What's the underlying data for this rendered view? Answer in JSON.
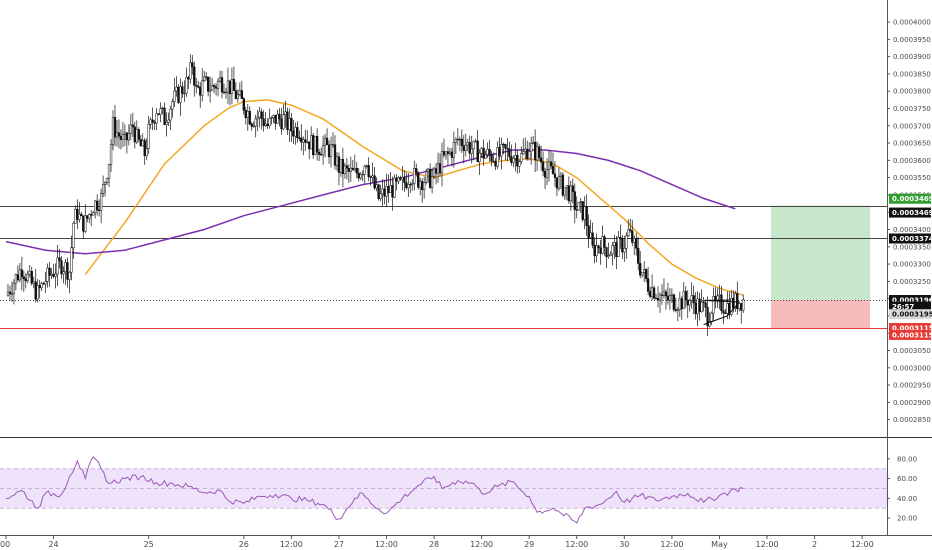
{
  "chart_data": [
    {
      "type": "candlestick",
      "panel": "price",
      "y_ticks": [
        "0.0004000",
        "0.0003950",
        "0.0003900",
        "0.0003850",
        "0.0003800",
        "0.0003750",
        "0.0003700",
        "0.0003650",
        "0.0003600",
        "0.0003550",
        "0.0003500",
        "0.0003450",
        "0.0003400",
        "0.0003350",
        "0.0003300",
        "0.0003250",
        "0.0003200",
        "0.0003150",
        "0.0003100",
        "0.0003050",
        "0.0003000",
        "0.0002950",
        "0.0002900",
        "0.0002850"
      ],
      "ylim": [
        0.000282,
        0.0004035
      ],
      "x_ticks": [
        {
          "label": "00",
          "t": 0.0
        },
        {
          "label": "24",
          "t": 12.0
        },
        {
          "label": "25",
          "t": 36.0
        },
        {
          "label": "26",
          "t": 60.0
        },
        {
          "label": "12:00",
          "t": 72.0
        },
        {
          "label": "27",
          "t": 84.0
        },
        {
          "label": "12:00",
          "t": 96.0
        },
        {
          "label": "28",
          "t": 108.0
        },
        {
          "label": "12:00",
          "t": 120.0
        },
        {
          "label": "29",
          "t": 132.0
        },
        {
          "label": "12:00",
          "t": 144.0
        },
        {
          "label": "30",
          "t": 156.0
        },
        {
          "label": "12:00",
          "t": 168.0
        },
        {
          "label": "May",
          "t": 180.0
        },
        {
          "label": "12:00",
          "t": 192.0
        },
        {
          "label": "2",
          "t": 204.0
        },
        {
          "label": "12:00",
          "t": 216.0
        }
      ],
      "price_path": [
        [
          0,
          0.000321
        ],
        [
          2,
          0.000325
        ],
        [
          4,
          0.000329
        ],
        [
          6,
          0.000325
        ],
        [
          8,
          0.0003215
        ],
        [
          10,
          0.0003255
        ],
        [
          12,
          0.000328
        ],
        [
          14,
          0.00033
        ],
        [
          16,
          0.000328
        ],
        [
          17,
          0.000342
        ],
        [
          18,
          0.000345
        ],
        [
          19,
          0.000342
        ],
        [
          20,
          0.000342
        ],
        [
          22,
          0.000347
        ],
        [
          24,
          0.000349
        ],
        [
          26,
          0.00036
        ],
        [
          27,
          0.00037
        ],
        [
          28,
          0.000368
        ],
        [
          30,
          0.000365
        ],
        [
          32,
          0.00037
        ],
        [
          33,
          0.000366
        ],
        [
          35,
          0.000362
        ],
        [
          36,
          0.000368
        ],
        [
          38,
          0.000375
        ],
        [
          40,
          0.000372
        ],
        [
          42,
          0.000377
        ],
        [
          44,
          0.00038
        ],
        [
          46,
          0.000383
        ],
        [
          47,
          0.000388
        ],
        [
          48,
          0.00038
        ],
        [
          50,
          0.000382
        ],
        [
          52,
          0.000381
        ],
        [
          54,
          0.000383
        ],
        [
          56,
          0.000382
        ],
        [
          58,
          0.000379
        ],
        [
          60,
          0.000376
        ],
        [
          62,
          0.000372
        ],
        [
          64,
          0.000373
        ],
        [
          66,
          0.00037
        ],
        [
          68,
          0.000372
        ],
        [
          70,
          0.000372
        ],
        [
          72,
          0.000369
        ],
        [
          74,
          0.000369
        ],
        [
          76,
          0.000366
        ],
        [
          78,
          0.000364
        ],
        [
          80,
          0.000364
        ],
        [
          82,
          0.000363
        ],
        [
          84,
          0.000358
        ],
        [
          86,
          0.0003565
        ],
        [
          88,
          0.000356
        ],
        [
          90,
          0.000358
        ],
        [
          91,
          0.0003605
        ],
        [
          92,
          0.000355
        ],
        [
          94,
          0.000349
        ],
        [
          96,
          0.000351
        ],
        [
          98,
          0.000352
        ],
        [
          100,
          0.000353
        ],
        [
          102,
          0.000356
        ],
        [
          104,
          0.0003545
        ],
        [
          106,
          0.0003545
        ],
        [
          108,
          0.000355
        ],
        [
          110,
          0.00036
        ],
        [
          112,
          0.000362
        ],
        [
          114,
          0.000366
        ],
        [
          116,
          0.000365
        ],
        [
          118,
          0.000363
        ],
        [
          120,
          0.000362
        ],
        [
          122,
          0.0003615
        ],
        [
          124,
          0.000361
        ],
        [
          126,
          0.0003625
        ],
        [
          128,
          0.0003615
        ],
        [
          130,
          0.000361
        ],
        [
          132,
          0.000364
        ],
        [
          134,
          0.000362
        ],
        [
          136,
          0.000358
        ],
        [
          138,
          0.000356
        ],
        [
          140,
          0.000353
        ],
        [
          142,
          0.000351
        ],
        [
          144,
          0.000346
        ],
        [
          146,
          0.000345
        ],
        [
          147,
          0.000339
        ],
        [
          148,
          0.000334
        ],
        [
          150,
          0.000336
        ],
        [
          152,
          0.000334
        ],
        [
          154,
          0.0003345
        ],
        [
          156,
          0.000336
        ],
        [
          157,
          0.000339
        ],
        [
          158,
          0.000337
        ],
        [
          159,
          0.000333
        ],
        [
          160,
          0.000329
        ],
        [
          162,
          0.000324
        ],
        [
          164,
          0.000322
        ],
        [
          166,
          0.00032
        ],
        [
          168,
          0.0003195
        ],
        [
          170,
          0.000319
        ],
        [
          172,
          0.00032
        ],
        [
          174,
          0.0003185
        ],
        [
          176,
          0.000317
        ],
        [
          177,
          0.000315
        ],
        [
          178,
          0.0003175
        ],
        [
          180,
          0.0003185
        ],
        [
          182,
          0.000318
        ],
        [
          184,
          0.000319
        ],
        [
          186,
          0.0003196
        ]
      ],
      "series": [
        {
          "name": "",
          "color": "#f5a623",
          "points": [
            [
              20,
              0.000327
            ],
            [
              30,
              0.000342
            ],
            [
              40,
              0.000359
            ],
            [
              50,
              0.00037
            ],
            [
              56,
              0.000375
            ],
            [
              60,
              0.000377
            ],
            [
              66,
              0.0003775
            ],
            [
              72,
              0.000376
            ],
            [
              80,
              0.000372
            ],
            [
              90,
              0.000364
            ],
            [
              100,
              0.000357
            ],
            [
              108,
              0.000355
            ],
            [
              114,
              0.000357
            ],
            [
              120,
              0.000359
            ],
            [
              126,
              0.00036
            ],
            [
              132,
              0.0003605
            ],
            [
              138,
              0.000359
            ],
            [
              144,
              0.000355
            ],
            [
              150,
              0.000349
            ],
            [
              156,
              0.000343
            ],
            [
              162,
              0.000336
            ],
            [
              168,
              0.00033
            ],
            [
              174,
              0.000326
            ],
            [
              180,
              0.000323
            ],
            [
              186,
              0.000321
            ]
          ]
        },
        {
          "name": "",
          "color": "#7b2fb0",
          "points": [
            [
              0,
              0.0003365
            ],
            [
              10,
              0.000334
            ],
            [
              20,
              0.000333
            ],
            [
              30,
              0.000334
            ],
            [
              40,
              0.000337
            ],
            [
              50,
              0.00034
            ],
            [
              60,
              0.000344
            ],
            [
              70,
              0.000347
            ],
            [
              80,
              0.00035
            ],
            [
              90,
              0.000353
            ],
            [
              100,
              0.000355
            ],
            [
              110,
              0.000358
            ],
            [
              120,
              0.000361
            ],
            [
              128,
              0.000363
            ],
            [
              136,
              0.000363
            ],
            [
              144,
              0.000362
            ],
            [
              152,
              0.00036
            ],
            [
              160,
              0.000357
            ],
            [
              168,
              0.000353
            ],
            [
              176,
              0.000349
            ],
            [
              184,
              0.000346
            ]
          ]
        }
      ],
      "horizontal_lines": [
        {
          "price": 0.0003469,
          "color": "#444444",
          "style": "solid"
        },
        {
          "price": 0.0003374,
          "color": "#444444",
          "style": "solid"
        },
        {
          "price": 0.0003196,
          "color": "#444444",
          "style": "dotted"
        },
        {
          "price": 0.0003115,
          "color": "#e53935",
          "style": "solid"
        }
      ],
      "position_box": {
        "t_start": 193,
        "t_end": 218,
        "entry": 0.0003196,
        "target": 0.0003469,
        "stop": 0.0003115,
        "profit_color": "#c8e6c9",
        "loss_color": "#f8bbbb"
      },
      "triangle": [
        [
          176,
          0.0003125
        ],
        [
          182,
          0.000315
        ],
        [
          185,
          0.000319
        ],
        [
          176,
          0.0003195
        ],
        [
          183,
          0.0003196
        ]
      ],
      "price_tags": [
        {
          "label": "0.0003469",
          "price": 0.0003489,
          "bg": "#2e9e2e",
          "fg": "#ffffff"
        },
        {
          "label": "0.0003469",
          "price": 0.0003449,
          "bg": "#111111",
          "fg": "#ffffff"
        },
        {
          "label": "0.0003374",
          "price": 0.0003374,
          "bg": "#111111",
          "fg": "#ffffff"
        },
        {
          "label": "0.0003196",
          "price": 0.0003196,
          "bg": "#111111",
          "fg": "#ffffff"
        },
        {
          "label": "26:57",
          "price": 0.0003177,
          "bg": "#111111",
          "fg": "#ffffff"
        },
        {
          "label": "0.0003195",
          "price": 0.0003155,
          "bg": "#d8d8d8",
          "fg": "#111111"
        },
        {
          "label": "0.0003115",
          "price": 0.0003115,
          "bg": "#e53935",
          "fg": "#ffffff"
        },
        {
          "label": "0.0003115",
          "price": 0.0003095,
          "bg": "#e53935",
          "fg": "#ffffff"
        }
      ]
    },
    {
      "type": "line",
      "panel": "oscillator",
      "y_ticks": [
        "80.00",
        "60.00",
        "40.00",
        "20.00"
      ],
      "ylim": [
        10,
        93
      ],
      "band": [
        30,
        70
      ],
      "series": [
        {
          "name": "",
          "color": "#9b59b6",
          "points": [
            [
              0,
              40
            ],
            [
              4,
              48
            ],
            [
              8,
              30
            ],
            [
              10,
              45
            ],
            [
              14,
              44
            ],
            [
              16,
              62
            ],
            [
              18,
              78
            ],
            [
              20,
              60
            ],
            [
              22,
              82
            ],
            [
              24,
              70
            ],
            [
              26,
              55
            ],
            [
              30,
              60
            ],
            [
              34,
              62
            ],
            [
              38,
              56
            ],
            [
              42,
              55
            ],
            [
              46,
              52
            ],
            [
              50,
              46
            ],
            [
              54,
              48
            ],
            [
              56,
              38
            ],
            [
              60,
              35
            ],
            [
              64,
              42
            ],
            [
              68,
              44
            ],
            [
              72,
              40
            ],
            [
              76,
              38
            ],
            [
              80,
              34
            ],
            [
              84,
              19
            ],
            [
              88,
              40
            ],
            [
              90,
              45
            ],
            [
              92,
              35
            ],
            [
              96,
              25
            ],
            [
              100,
              40
            ],
            [
              104,
              53
            ],
            [
              108,
              62
            ],
            [
              110,
              50
            ],
            [
              114,
              58
            ],
            [
              118,
              55
            ],
            [
              120,
              45
            ],
            [
              124,
              52
            ],
            [
              128,
              57
            ],
            [
              130,
              48
            ],
            [
              132,
              42
            ],
            [
              134,
              26
            ],
            [
              138,
              30
            ],
            [
              140,
              25
            ],
            [
              144,
              15
            ],
            [
              146,
              30
            ],
            [
              150,
              34
            ],
            [
              152,
              40
            ],
            [
              154,
              47
            ],
            [
              156,
              36
            ],
            [
              160,
              43
            ],
            [
              164,
              38
            ],
            [
              168,
              42
            ],
            [
              172,
              45
            ],
            [
              176,
              36
            ],
            [
              180,
              43
            ],
            [
              184,
              49
            ],
            [
              186,
              50
            ]
          ]
        }
      ]
    }
  ]
}
